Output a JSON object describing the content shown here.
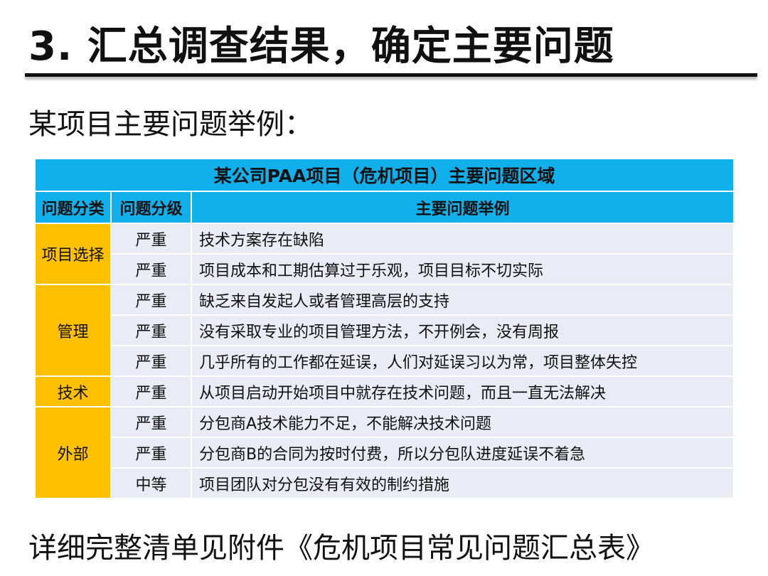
{
  "title": "3. 汇总调查结果，确定主要问题",
  "subtitle": "某项目主要问题举例：",
  "footer": "详细完整清单见附件《危机项目常见问题汇总表》",
  "table": {
    "caption": "某公司PAA项目（危机项目）主要问题区域",
    "headers": [
      "问题分类",
      "问题分级",
      "主要问题举例"
    ],
    "categories": [
      {
        "name": "项目选择",
        "span": 2
      },
      {
        "name": "管理",
        "span": 3
      },
      {
        "name": "技术",
        "span": 1
      },
      {
        "name": "外部",
        "span": 3
      }
    ],
    "rows": [
      {
        "level": "严重",
        "desc": "技术方案存在缺陷"
      },
      {
        "level": "严重",
        "desc": "项目成本和工期估算过于乐观，项目目标不切实际"
      },
      {
        "level": "严重",
        "desc": "缺乏来自发起人或者管理高层的支持"
      },
      {
        "level": "严重",
        "desc": "没有采取专业的项目管理方法，不开例会，没有周报"
      },
      {
        "level": "严重",
        "desc": "几乎所有的工作都在延误，人们对延误习以为常，项目整体失控"
      },
      {
        "level": "严重",
        "desc": "从项目启动开始项目中就存在技术问题，而且一直无法解决"
      },
      {
        "level": "严重",
        "desc": "分包商A技术能力不足，不能解决技术问题"
      },
      {
        "level": "严重",
        "desc": "分包商B的合同为按时付费，所以分包队进度延误不着急"
      },
      {
        "level": "中等",
        "desc": "项目团队对分包没有有效的制约措施"
      }
    ]
  },
  "colors": {
    "header": "#0fb0ec",
    "category": "#ffc000",
    "row": "#e9ebf5"
  }
}
